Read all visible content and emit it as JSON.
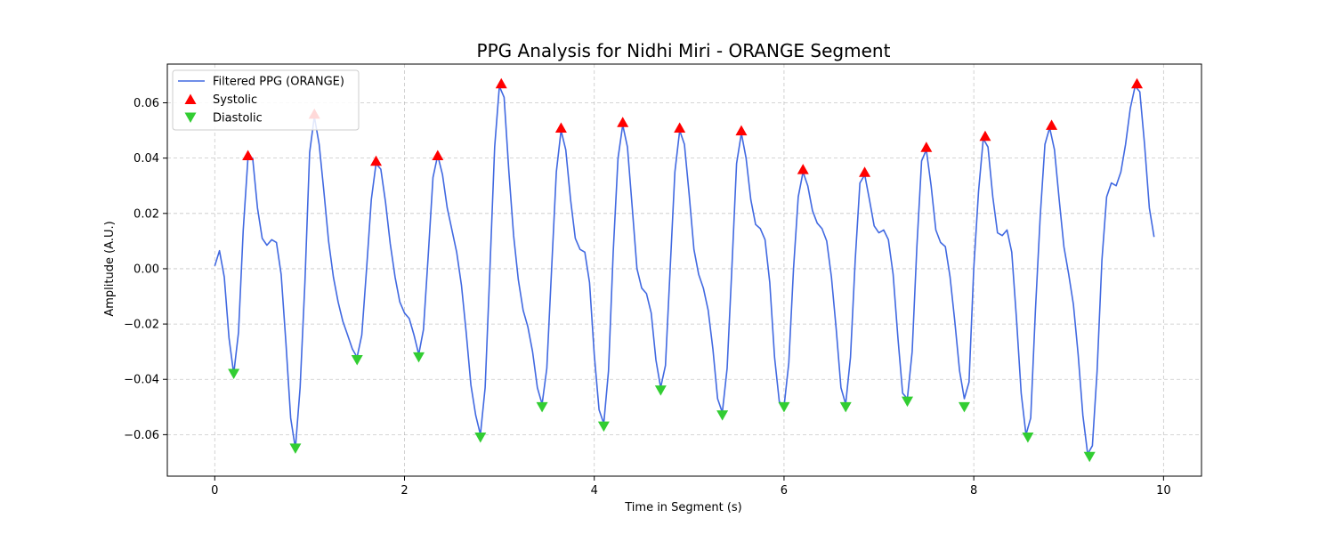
{
  "chart_data": {
    "type": "line",
    "title": "PPG Analysis for Nidhi Miri - ORANGE Segment",
    "xlabel": "Time in Segment (s)",
    "ylabel": "Amplitude (A.U.)",
    "xlim": [
      -0.5,
      10.4
    ],
    "ylim": [
      -0.075,
      0.074
    ],
    "xticks": [
      0,
      2,
      4,
      6,
      8,
      10
    ],
    "yticks": [
      -0.06,
      -0.04,
      -0.02,
      0.0,
      0.02,
      0.04,
      0.06
    ],
    "ytick_labels": [
      "−0.06",
      "−0.04",
      "−0.02",
      "0.00",
      "0.02",
      "0.04",
      "0.06"
    ],
    "grid": true,
    "legend_position": "top-left",
    "colors": {
      "line": "#4169e1",
      "systolic": "#ff0000",
      "diastolic": "#32cd32"
    },
    "series": [
      {
        "name": "Filtered PPG (ORANGE)",
        "kind": "line",
        "x": [
          0,
          0.05,
          0.1,
          0.15,
          0.2,
          0.25,
          0.3,
          0.35,
          0.4,
          0.45,
          0.5,
          0.55,
          0.6,
          0.65,
          0.7,
          0.75,
          0.8,
          0.85,
          0.9,
          0.95,
          1.0,
          1.05,
          1.1,
          1.15,
          1.2,
          1.25,
          1.3,
          1.35,
          1.4,
          1.45,
          1.5,
          1.55,
          1.6,
          1.65,
          1.7,
          1.75,
          1.8,
          1.85,
          1.9,
          1.95,
          2.0,
          2.05,
          2.1,
          2.15,
          2.2,
          2.25,
          2.3,
          2.35,
          2.4,
          2.45,
          2.5,
          2.55,
          2.6,
          2.65,
          2.7,
          2.75,
          2.8,
          2.85,
          2.9,
          2.95,
          3.0,
          3.05,
          3.1,
          3.15,
          3.2,
          3.25,
          3.3,
          3.35,
          3.4,
          3.45,
          3.5,
          3.55,
          3.6,
          3.65,
          3.7,
          3.75,
          3.8,
          3.85,
          3.9,
          3.95,
          4.0,
          4.05,
          4.1,
          4.15,
          4.2,
          4.25,
          4.3,
          4.35,
          4.4,
          4.45,
          4.5,
          4.55,
          4.6,
          4.65,
          4.7,
          4.75,
          4.8,
          4.85,
          4.9,
          4.95,
          5.0,
          5.05,
          5.1,
          5.15,
          5.2,
          5.25,
          5.3,
          5.35,
          5.4,
          5.45,
          5.5,
          5.55,
          5.6,
          5.65,
          5.7,
          5.75,
          5.8,
          5.85,
          5.9,
          5.95,
          6.0,
          6.05,
          6.1,
          6.15,
          6.2,
          6.25,
          6.3,
          6.35,
          6.4,
          6.45,
          6.5,
          6.55,
          6.6,
          6.65,
          6.7,
          6.75,
          6.8,
          6.85,
          6.9,
          6.95,
          7.0,
          7.05,
          7.1,
          7.15,
          7.2,
          7.25,
          7.3,
          7.35,
          7.4,
          7.45,
          7.5,
          7.55,
          7.6,
          7.65,
          7.7,
          7.75,
          7.8,
          7.85,
          7.9,
          7.95,
          8.0,
          8.05,
          8.1,
          8.15,
          8.2,
          8.25,
          8.3,
          8.35,
          8.4,
          8.45,
          8.5,
          8.55,
          8.6,
          8.65,
          8.7,
          8.75,
          8.8,
          8.85,
          8.9,
          8.95,
          9.0,
          9.05,
          9.1,
          9.15,
          9.2,
          9.25,
          9.3,
          9.35,
          9.4,
          9.45,
          9.5,
          9.55,
          9.6,
          9.65,
          9.7,
          9.75,
          9.8,
          9.85,
          9.9
        ],
        "y": [
          0.001,
          0.0065,
          -0.003,
          -0.025,
          -0.038,
          -0.023,
          0.014,
          0.04,
          0.04,
          0.022,
          0.011,
          0.0085,
          0.0105,
          0.0095,
          -0.002,
          -0.027,
          -0.054,
          -0.065,
          -0.043,
          -0.005,
          0.042,
          0.055,
          0.045,
          0.028,
          0.01,
          -0.003,
          -0.012,
          -0.019,
          -0.024,
          -0.029,
          -0.032,
          -0.024,
          0.0,
          0.025,
          0.038,
          0.036,
          0.024,
          0.009,
          -0.003,
          -0.012,
          -0.016,
          -0.018,
          -0.024,
          -0.031,
          -0.022,
          0.005,
          0.033,
          0.041,
          0.034,
          0.022,
          0.014,
          0.006,
          -0.006,
          -0.023,
          -0.042,
          -0.053,
          -0.06,
          -0.043,
          0.0,
          0.044,
          0.066,
          0.062,
          0.035,
          0.012,
          -0.004,
          -0.015,
          -0.021,
          -0.03,
          -0.043,
          -0.049,
          -0.036,
          0.0,
          0.035,
          0.05,
          0.043,
          0.025,
          0.011,
          0.007,
          0.006,
          -0.005,
          -0.031,
          -0.051,
          -0.056,
          -0.037,
          0.006,
          0.04,
          0.052,
          0.044,
          0.022,
          0.0,
          -0.007,
          -0.009,
          -0.016,
          -0.033,
          -0.043,
          -0.035,
          0.0,
          0.035,
          0.05,
          0.045,
          0.027,
          0.007,
          -0.002,
          -0.007,
          -0.015,
          -0.029,
          -0.047,
          -0.052,
          -0.036,
          0.0,
          0.038,
          0.049,
          0.04,
          0.025,
          0.016,
          0.0145,
          0.0105,
          -0.005,
          -0.032,
          -0.048,
          -0.05,
          -0.034,
          0.0,
          0.026,
          0.035,
          0.03,
          0.021,
          0.0165,
          0.0145,
          0.01,
          -0.003,
          -0.022,
          -0.043,
          -0.049,
          -0.032,
          0.003,
          0.031,
          0.034,
          0.025,
          0.0155,
          0.013,
          0.014,
          0.0105,
          -0.002,
          -0.025,
          -0.045,
          -0.047,
          -0.03,
          0.008,
          0.039,
          0.043,
          0.03,
          0.014,
          0.0095,
          0.008,
          -0.003,
          -0.019,
          -0.037,
          -0.047,
          -0.041,
          0.0,
          0.028,
          0.047,
          0.044,
          0.026,
          0.013,
          0.012,
          0.014,
          0.006,
          -0.018,
          -0.045,
          -0.06,
          -0.054,
          -0.015,
          0.019,
          0.045,
          0.051,
          0.043,
          0.025,
          0.008,
          -0.002,
          -0.013,
          -0.031,
          -0.053,
          -0.067,
          -0.064,
          -0.037,
          0.003,
          0.026,
          0.031,
          0.03,
          0.035,
          0.045,
          0.058,
          0.066,
          0.064,
          0.045,
          0.022,
          0.0115
        ]
      },
      {
        "name": "Systolic",
        "kind": "marker",
        "marker": "triangle-up",
        "x": [
          0.35,
          1.05,
          1.7,
          2.35,
          3.02,
          3.65,
          4.3,
          4.9,
          5.55,
          6.2,
          6.85,
          7.5,
          8.12,
          8.82,
          9.72
        ],
        "y": [
          0.041,
          0.056,
          0.039,
          0.041,
          0.067,
          0.051,
          0.053,
          0.051,
          0.05,
          0.036,
          0.035,
          0.044,
          0.048,
          0.052,
          0.067
        ]
      },
      {
        "name": "Diastolic",
        "kind": "marker",
        "marker": "triangle-down",
        "x": [
          0.2,
          0.85,
          1.5,
          2.15,
          2.8,
          3.45,
          4.1,
          4.7,
          5.35,
          6.0,
          6.65,
          7.3,
          7.9,
          8.57,
          9.22
        ],
        "y": [
          -0.038,
          -0.065,
          -0.033,
          -0.032,
          -0.061,
          -0.05,
          -0.057,
          -0.044,
          -0.053,
          -0.05,
          -0.05,
          -0.048,
          -0.05,
          -0.061,
          -0.068
        ]
      }
    ]
  }
}
